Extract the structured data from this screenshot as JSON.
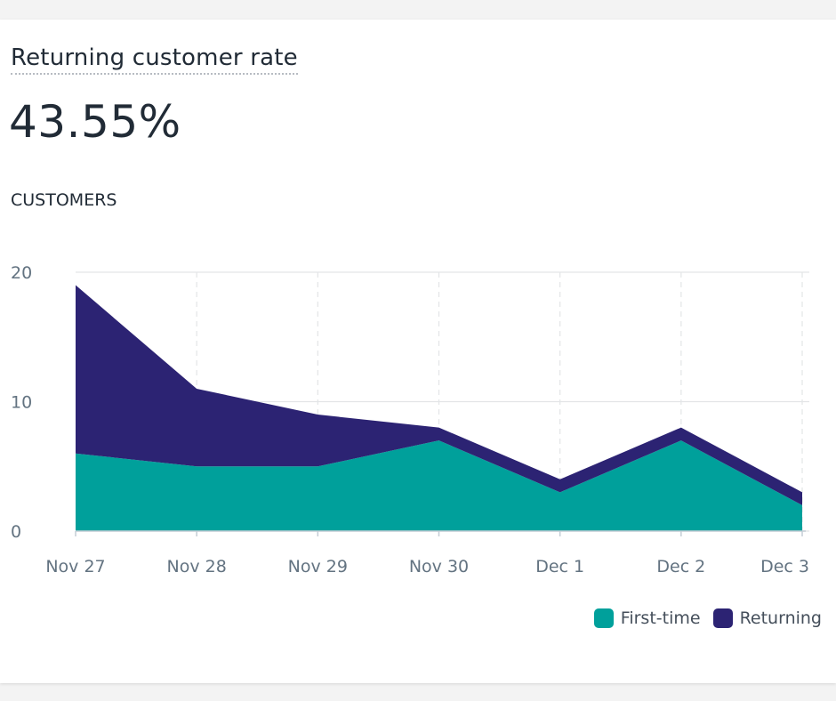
{
  "card": {
    "title": "Returning customer rate",
    "metric": "43.55%",
    "subheading": "CUSTOMERS"
  },
  "colors": {
    "first_time": "#00a09b",
    "returning": "#2c2373",
    "grid": "#e3e5e7",
    "axis_text": "#637381"
  },
  "chart_data": {
    "type": "area",
    "stacked": true,
    "categories": [
      "Nov 27",
      "Nov 28",
      "Nov 29",
      "Nov 30",
      "Dec 1",
      "Dec 2",
      "Dec 3"
    ],
    "series": [
      {
        "name": "First-time",
        "values": [
          6,
          5,
          5,
          7,
          3,
          7,
          2
        ]
      },
      {
        "name": "Returning",
        "values": [
          13,
          6,
          4,
          1,
          1,
          1,
          1
        ]
      }
    ],
    "yticks": [
      0,
      10,
      20
    ],
    "ylim": [
      0,
      20
    ],
    "grid": true,
    "legend": "bottom-right"
  }
}
